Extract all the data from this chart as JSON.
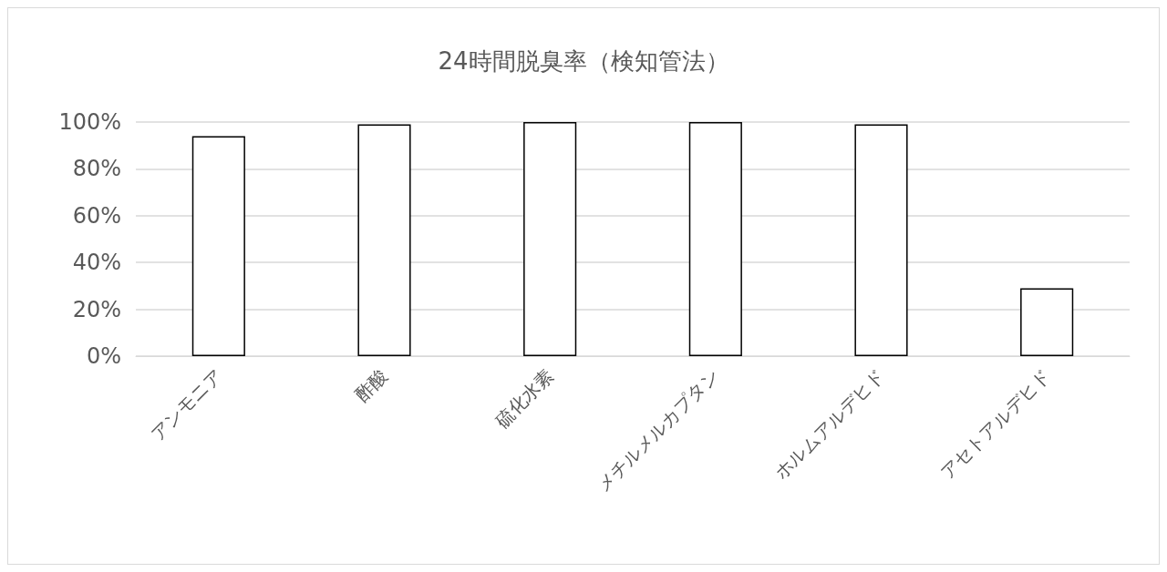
{
  "chart_data": {
    "type": "bar",
    "title": "24時間脱臭率（検知管法）",
    "categories": [
      "アンモニア",
      "酢酸",
      "硫化水素",
      "メチルメルカプタン",
      "ホルムアルデヒド",
      "アセトアルデヒド"
    ],
    "values": [
      94,
      99,
      100,
      100,
      99,
      29
    ],
    "color": "#ffffff",
    "ylim": [
      0,
      100
    ],
    "yticks": [
      {
        "value": 0,
        "label": "0%"
      },
      {
        "value": 20,
        "label": "20%"
      },
      {
        "value": 40,
        "label": "40%"
      },
      {
        "value": 60,
        "label": "60%"
      },
      {
        "value": 80,
        "label": "80%"
      },
      {
        "value": 100,
        "label": "100%"
      }
    ],
    "grid": "y"
  }
}
